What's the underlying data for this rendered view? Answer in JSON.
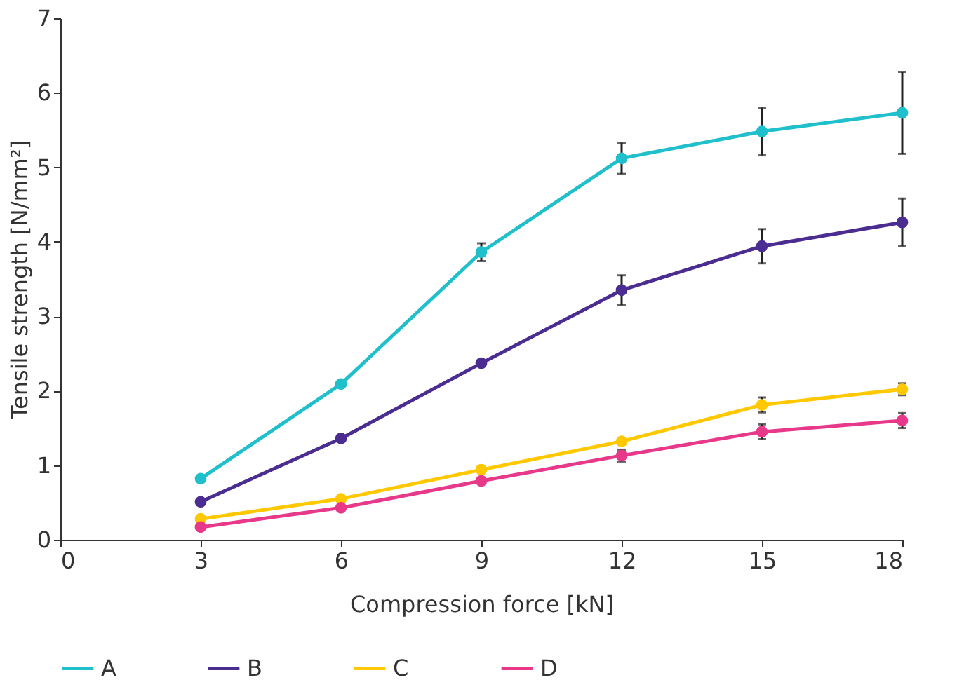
{
  "chart_data": {
    "type": "line",
    "xlabel": "Compression force [kN]",
    "ylabel": "Tensile strength [N/mm²]",
    "x": [
      3,
      6,
      9,
      12,
      15,
      18
    ],
    "xlim": [
      0,
      18
    ],
    "xticks": [
      0,
      3,
      6,
      9,
      12,
      15,
      18
    ],
    "ylim": [
      0,
      7
    ],
    "yticks": [
      0,
      1,
      2,
      3,
      4,
      5,
      6,
      7
    ],
    "grid": false,
    "legend": "bottom",
    "marker": "circle",
    "line_style": "solid",
    "series": [
      {
        "name": "A",
        "color": "#1fbfcc",
        "values": [
          0.82,
          2.09,
          3.86,
          5.12,
          5.48,
          5.73
        ],
        "errors": [
          null,
          null,
          0.12,
          0.21,
          0.32,
          0.55
        ]
      },
      {
        "name": "B",
        "color": "#4b2d91",
        "values": [
          0.51,
          1.36,
          2.37,
          3.35,
          3.94,
          4.26
        ],
        "errors": [
          null,
          null,
          null,
          0.2,
          0.23,
          0.32
        ]
      },
      {
        "name": "C",
        "color": "#ffc800",
        "values": [
          0.28,
          0.55,
          0.94,
          1.32,
          1.81,
          2.02
        ],
        "errors": [
          null,
          null,
          null,
          null,
          0.1,
          0.08
        ]
      },
      {
        "name": "D",
        "color": "#e8388a",
        "values": [
          0.17,
          0.43,
          0.79,
          1.13,
          1.45,
          1.6
        ],
        "errors": [
          null,
          null,
          null,
          0.08,
          0.1,
          0.1
        ]
      }
    ]
  }
}
